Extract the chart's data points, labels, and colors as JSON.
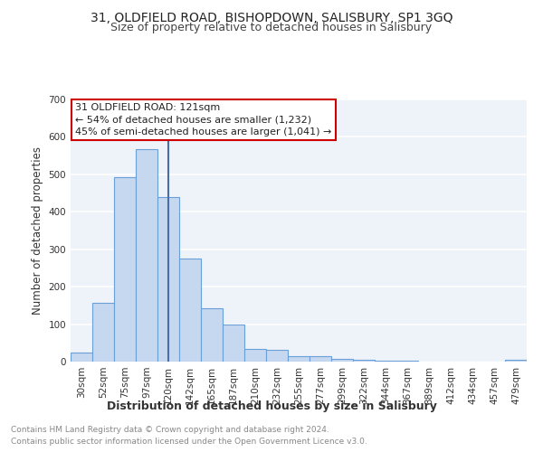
{
  "title_line1": "31, OLDFIELD ROAD, BISHOPDOWN, SALISBURY, SP1 3GQ",
  "title_line2": "Size of property relative to detached houses in Salisbury",
  "xlabel": "Distribution of detached houses by size in Salisbury",
  "ylabel": "Number of detached properties",
  "bar_labels": [
    "30sqm",
    "52sqm",
    "75sqm",
    "97sqm",
    "120sqm",
    "142sqm",
    "165sqm",
    "187sqm",
    "210sqm",
    "232sqm",
    "255sqm",
    "277sqm",
    "299sqm",
    "322sqm",
    "344sqm",
    "367sqm",
    "389sqm",
    "412sqm",
    "434sqm",
    "457sqm",
    "479sqm"
  ],
  "bar_values": [
    25,
    158,
    492,
    567,
    440,
    275,
    143,
    98,
    35,
    32,
    15,
    15,
    8,
    4,
    3,
    2,
    0,
    0,
    0,
    0,
    5
  ],
  "bar_color": "#c5d8f0",
  "bar_edge_color": "#6a9fd8",
  "vline_x_index": 4,
  "vline_color": "#4a6fa5",
  "ylim": [
    0,
    700
  ],
  "yticks": [
    0,
    100,
    200,
    300,
    400,
    500,
    600,
    700
  ],
  "annotation_text": "31 OLDFIELD ROAD: 121sqm\n← 54% of detached houses are smaller (1,232)\n45% of semi-detached houses are larger (1,041) →",
  "annotation_box_color": "#cc0000",
  "footer_line1": "Contains HM Land Registry data © Crown copyright and database right 2024.",
  "footer_line2": "Contains public sector information licensed under the Open Government Licence v3.0.",
  "bg_color": "#eef2f9",
  "grid_color": "#ffffff",
  "title_fontsize": 10,
  "subtitle_fontsize": 9,
  "ylabel_fontsize": 8.5,
  "xlabel_fontsize": 9,
  "tick_fontsize": 7.5,
  "annotation_fontsize": 8,
  "footer_fontsize": 6.5
}
